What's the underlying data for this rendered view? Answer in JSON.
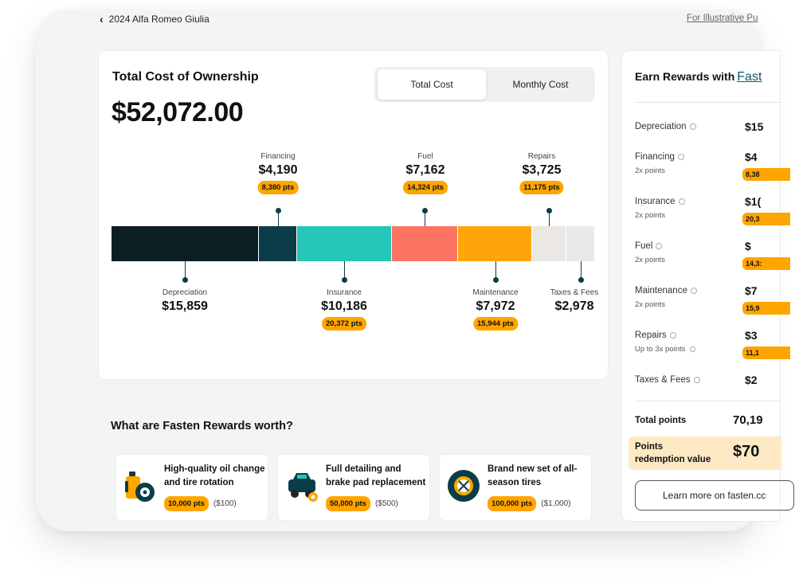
{
  "header": {
    "back_label": "2024 Alfa Romeo Giulia",
    "illustrative_link": "For Illustrative Pu"
  },
  "tco": {
    "title": "Total Cost of Ownership",
    "total": "$52,072.00",
    "tabs": [
      {
        "label": "Total Cost",
        "active": true
      },
      {
        "label": "Monthly Cost",
        "active": false
      }
    ],
    "segments": [
      {
        "name": "Depreciation",
        "amount": "$15,859",
        "value": 15859,
        "points": "",
        "color": "#0b1e24"
      },
      {
        "name": "Financing",
        "amount": "$4,190",
        "value": 4190,
        "points": "8,380 pts",
        "color": "#0b3d48"
      },
      {
        "name": "Insurance",
        "amount": "$10,186",
        "value": 10186,
        "points": "20,372 pts",
        "color": "#26c6b9"
      },
      {
        "name": "Fuel",
        "amount": "$7,162",
        "value": 7162,
        "points": "14,324 pts",
        "color": "#fd7562"
      },
      {
        "name": "Maintenance",
        "amount": "$7,972",
        "value": 7972,
        "points": "15,944 pts",
        "color": "#ffa50a"
      },
      {
        "name": "Repairs",
        "amount": "$3,725",
        "value": 3725,
        "points": "11,175 pts",
        "color": "#ebe8e3"
      },
      {
        "name": "Taxes & Fees",
        "amount": "$2,978",
        "value": 2978,
        "points": "",
        "color": "#e8e9e9"
      }
    ]
  },
  "worth": {
    "title": "What are Fasten Rewards worth?",
    "items": [
      {
        "text": "High-quality oil change and tire rotation",
        "points": "10,000 pts",
        "usd": "($100)",
        "icon": "oil-can-tire-icon"
      },
      {
        "text": "Full detailing and brake pad replacement",
        "points": "50,000 pts",
        "usd": "($500)",
        "icon": "car-detailing-icon"
      },
      {
        "text": "Brand new set of all-season tires",
        "points": "100,000 pts",
        "usd": "($1,000)",
        "icon": "tire-icon"
      }
    ]
  },
  "side": {
    "title": "Earn Rewards with",
    "brand": "Fast",
    "rows": [
      {
        "name": "Depreciation",
        "sub": "",
        "value": "$15",
        "points": ""
      },
      {
        "name": "Financing",
        "sub": "2x points",
        "value": "$4",
        "points": "8,38"
      },
      {
        "name": "Insurance",
        "sub": "2x points",
        "value": "$1(",
        "points": "20,3"
      },
      {
        "name": "Fuel",
        "sub": "2x points",
        "value": "$",
        "points": "14,3:"
      },
      {
        "name": "Maintenance",
        "sub": "2x points",
        "value": "$7",
        "points": "15,9"
      },
      {
        "name": "Repairs",
        "sub": "Up to 3x points",
        "value": "$3",
        "points": "11,1"
      },
      {
        "name": "Taxes & Fees",
        "sub": "",
        "value": "$2",
        "points": ""
      }
    ],
    "total_label": "Total points",
    "total_value": "70,19",
    "redeem_label": "Points redemption value",
    "redeem_value": "$70",
    "learn_more": "Learn more on fasten.cc"
  }
}
